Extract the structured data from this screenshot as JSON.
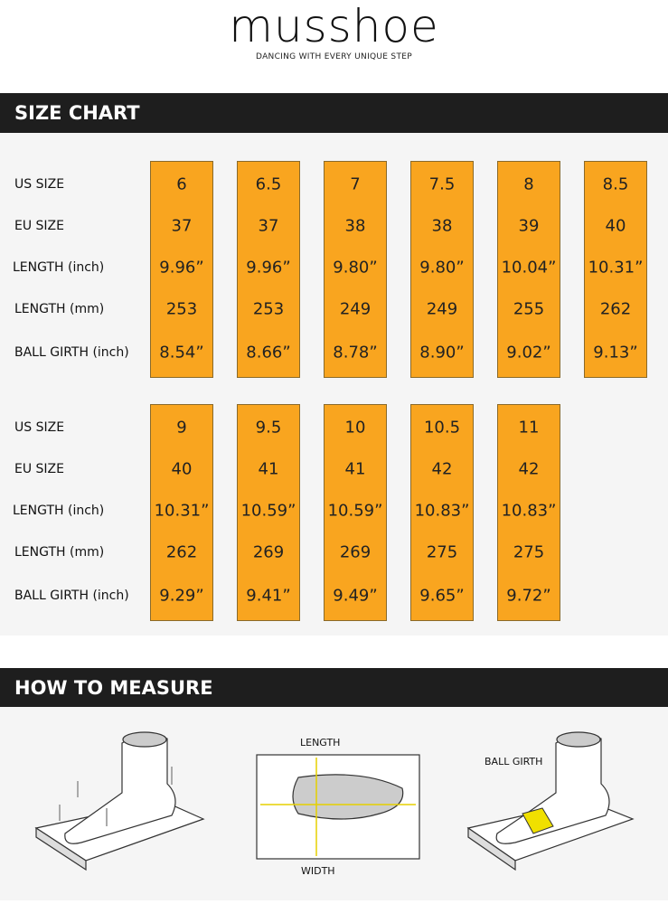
{
  "header": {
    "brand": "musshoe",
    "tagline": "DANCING WITH EVERY UNIQUE STEP"
  },
  "size_chart": {
    "title": "SIZE CHART",
    "tables": [
      {
        "row_labels": [
          "US SIZE",
          "EU SIZE",
          "LENGTH (inch)",
          "LENGTH (mm)",
          "BALL GIRTH (inch)"
        ],
        "columns": [
          [
            "6",
            "37",
            "9.96”",
            "253",
            "8.54”"
          ],
          [
            "6.5",
            "37",
            "9.96”",
            "253",
            "8.66”"
          ],
          [
            "7",
            "38",
            "9.80”",
            "249",
            "8.78”"
          ],
          [
            "7.5",
            "38",
            "9.80”",
            "249",
            "8.90”"
          ],
          [
            "8",
            "39",
            "10.04”",
            "255",
            "9.02”"
          ],
          [
            "8.5",
            "40",
            "10.31”",
            "262",
            "9.13”"
          ]
        ]
      },
      {
        "row_labels": [
          "US SIZE",
          "EU SIZE",
          "LENGTH (inch)",
          "LENGTH (mm)",
          "BALL GIRTH (inch)"
        ],
        "columns": [
          [
            "9",
            "40",
            "10.31”",
            "262",
            "9.29”"
          ],
          [
            "9.5",
            "41",
            "10.59”",
            "269",
            "9.41”"
          ],
          [
            "10",
            "41",
            "10.59”",
            "269",
            "9.49”"
          ],
          [
            "10.5",
            "42",
            "10.83”",
            "275",
            "9.65”"
          ],
          [
            "11",
            "42",
            "10.83”",
            "275",
            "9.72”"
          ]
        ]
      }
    ]
  },
  "how_to_measure": {
    "title": "HOW TO MEASURE",
    "labels": {
      "length": "LENGTH",
      "width": "WIDTH",
      "ball_girth": "BALL GIRTH"
    }
  }
}
